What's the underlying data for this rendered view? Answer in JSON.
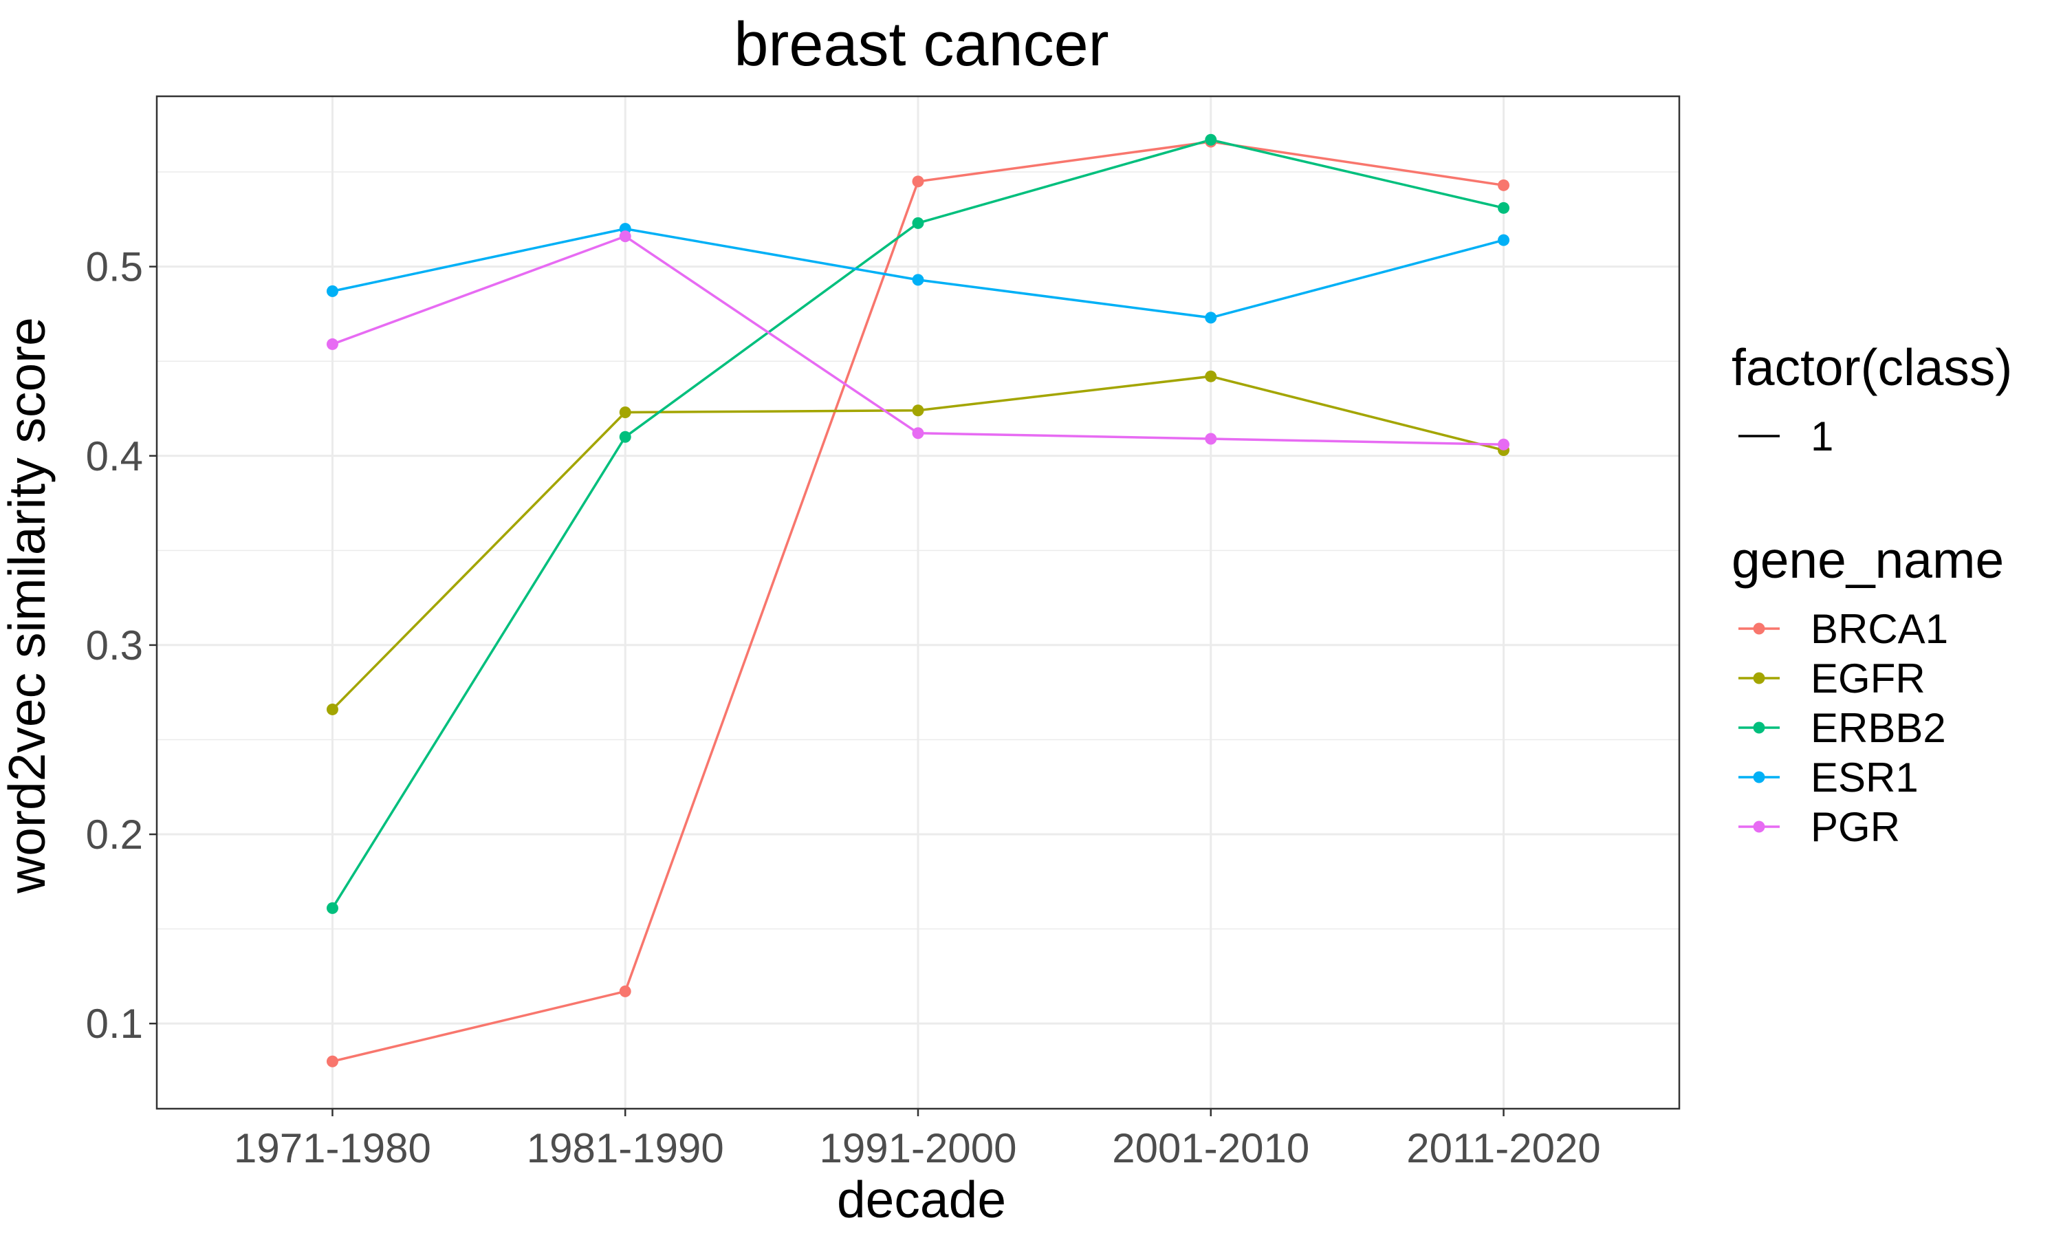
{
  "chart_data": {
    "type": "line",
    "title": "breast cancer",
    "xlabel": "decade",
    "ylabel": "word2vec similarity score",
    "categories": [
      "1971-1980",
      "1981-1990",
      "1991-2000",
      "2001-2010",
      "2011-2020"
    ],
    "ylim": [
      0.055,
      0.59
    ],
    "yticks": [
      0.1,
      0.2,
      0.3,
      0.4,
      0.5
    ],
    "ytick_labels": [
      "0.1",
      "0.2",
      "0.3",
      "0.4",
      "0.5"
    ],
    "grid": true,
    "legend_position": "right",
    "legend_groups": [
      {
        "title": "factor(class)",
        "entries": [
          {
            "label": "1",
            "kind": "line",
            "color": "#000000"
          }
        ]
      },
      {
        "title": "gene_name",
        "entries": [
          {
            "label": "BRCA1",
            "kind": "line-point",
            "color": "#F8766D"
          },
          {
            "label": "EGFR",
            "kind": "line-point",
            "color": "#A3A500"
          },
          {
            "label": "ERBB2",
            "kind": "line-point",
            "color": "#00BF7D"
          },
          {
            "label": "ESR1",
            "kind": "line-point",
            "color": "#00B0F6"
          },
          {
            "label": "PGR",
            "kind": "line-point",
            "color": "#E76BF3"
          }
        ]
      }
    ],
    "series": [
      {
        "name": "BRCA1",
        "color": "#F8766D",
        "values": [
          0.08,
          0.117,
          0.545,
          0.566,
          0.543
        ]
      },
      {
        "name": "EGFR",
        "color": "#A3A500",
        "values": [
          0.266,
          0.423,
          0.424,
          0.442,
          0.403
        ]
      },
      {
        "name": "ERBB2",
        "color": "#00BF7D",
        "values": [
          0.161,
          0.41,
          0.523,
          0.567,
          0.531
        ]
      },
      {
        "name": "ESR1",
        "color": "#00B0F6",
        "values": [
          0.487,
          0.52,
          0.493,
          0.473,
          0.514
        ]
      },
      {
        "name": "PGR",
        "color": "#E76BF3",
        "values": [
          0.459,
          0.516,
          0.412,
          0.409,
          0.406
        ]
      }
    ]
  }
}
